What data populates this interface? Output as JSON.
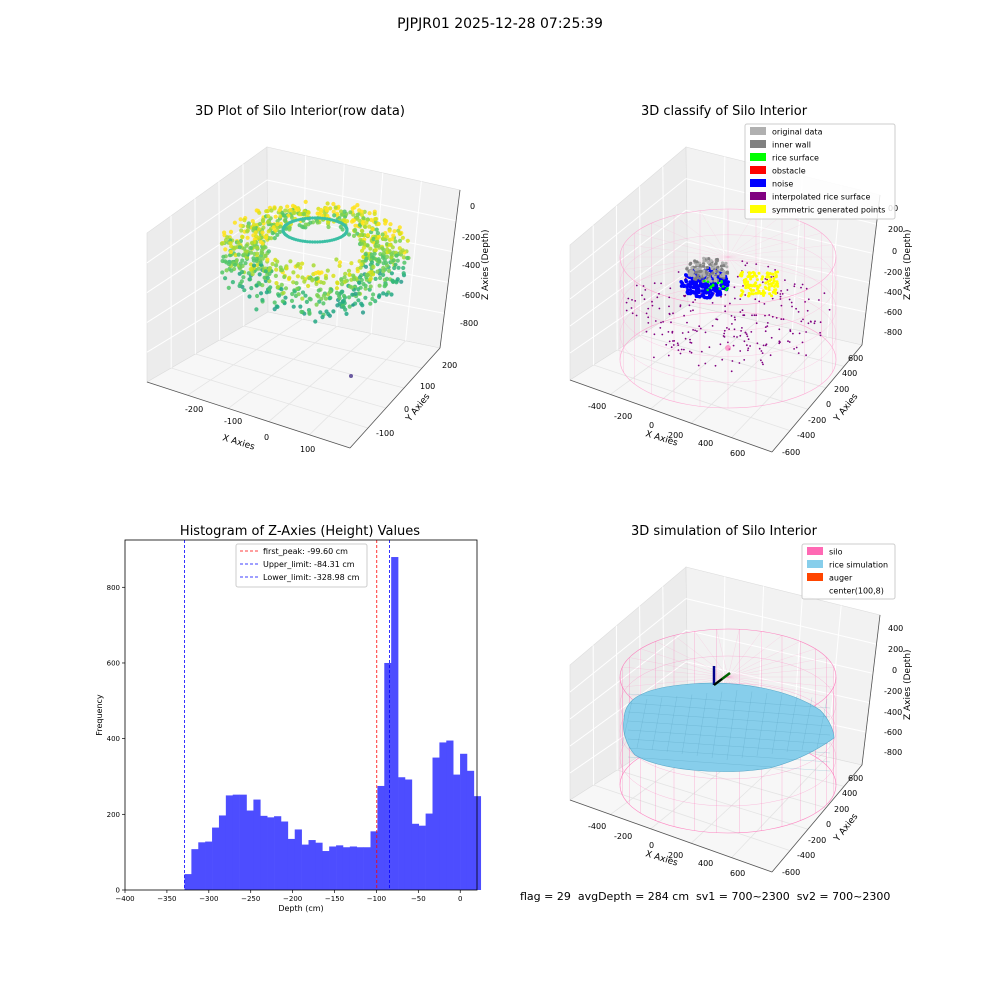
{
  "suptitle": "PJPJR01 2025-12-28 07:25:39",
  "footer": "flag = 29  avgDepth = 284 cm  sv1 = 700~2300  sv2 = 700~2300",
  "colors": {
    "hist_bar": "#4d4dff",
    "first_peak": "#ff0000",
    "limit": "#0000ff",
    "silo": "#ff69b4",
    "rice_sim": "#87ceeb",
    "auger": "#ff4500",
    "pane": "#f2f2f2"
  },
  "chart_data": [
    {
      "type": "scatter",
      "title": "3D Plot of Silo Interior(row data)",
      "xlabel": "X Axies",
      "ylabel": "Y Axies",
      "zlabel": "Z Axies (Depth)",
      "x_ticks": [
        "-200",
        "-100",
        "0",
        "100"
      ],
      "y_ticks": [
        "-100",
        "0",
        "100",
        "200"
      ],
      "z_ticks": [
        "0",
        "-200",
        "-400",
        "-600",
        "-800"
      ]
    },
    {
      "type": "scatter",
      "title": "3D classify of Silo Interior",
      "xlabel": "X Axies",
      "ylabel": "Y Axies",
      "zlabel": "Z Axies (Depth)",
      "x_ticks": [
        "-400",
        "-200",
        "0",
        "200",
        "400",
        "600"
      ],
      "y_ticks": [
        "-600",
        "-400",
        "-200",
        "0",
        "200",
        "400",
        "600"
      ],
      "z_ticks": [
        "-800",
        "-600",
        "-400",
        "-200",
        "0",
        "200"
      ],
      "z_tick_partial": "00",
      "legend": [
        {
          "label": "original data",
          "color": "#b0b0b0"
        },
        {
          "label": "inner wall",
          "color": "#808080"
        },
        {
          "label": "rice surface",
          "color": "#00ff00"
        },
        {
          "label": "obstacle",
          "color": "#ff0000"
        },
        {
          "label": "noise",
          "color": "#0000ff"
        },
        {
          "label": "interpolated rice surface",
          "color": "#800080"
        },
        {
          "label": "symmetric generated points",
          "color": "#ffff00"
        }
      ]
    },
    {
      "type": "bar",
      "title": "Histogram of Z-Axies (Height) Values",
      "xlabel": "Depth (cm)",
      "ylabel": "Frequency",
      "xlim": [
        -400,
        20
      ],
      "ylim": [
        0,
        925
      ],
      "x_ticks": [
        -400,
        -350,
        -300,
        -250,
        -200,
        -150,
        -100,
        -50,
        0
      ],
      "y_ticks": [
        0,
        200,
        400,
        600,
        800
      ],
      "bin_start": -329,
      "bin_width": 8.22,
      "values": [
        42,
        108,
        126,
        128,
        165,
        197,
        250,
        252,
        252,
        210,
        239,
        196,
        192,
        195,
        181,
        135,
        160,
        120,
        132,
        125,
        103,
        115,
        118,
        113,
        115,
        113,
        113,
        155,
        275,
        600,
        880,
        298,
        292,
        175,
        170,
        202,
        350,
        390,
        395,
        305,
        360,
        315,
        248
      ],
      "vlines": [
        {
          "label": "first_peak: -99.60 cm",
          "x": -99.6,
          "color": "#ff0000"
        },
        {
          "label": "Upper_limit: -84.31 cm",
          "x": -84.31,
          "color": "#0000ff"
        },
        {
          "label": "Lower_limit: -328.98 cm",
          "x": -328.98,
          "color": "#0000ff"
        }
      ]
    },
    {
      "type": "area",
      "title": "3D simulation of Silo Interior",
      "xlabel": "X Axies",
      "ylabel": "Y Axies",
      "zlabel": "Z Axies (Depth)",
      "x_ticks": [
        "-400",
        "-200",
        "0",
        "200",
        "400",
        "600"
      ],
      "y_ticks": [
        "-600",
        "-400",
        "-200",
        "0",
        "200",
        "400",
        "600"
      ],
      "z_ticks": [
        "-800",
        "-600",
        "-400",
        "-200",
        "0",
        "200",
        "400"
      ],
      "legend": [
        {
          "label": "silo",
          "color": "#ff69b4"
        },
        {
          "label": "rice simulation",
          "color": "#87ceeb"
        },
        {
          "label": "auger",
          "color": "#ff4500"
        },
        {
          "label": "center(100,8)",
          "color": ""
        }
      ]
    }
  ]
}
